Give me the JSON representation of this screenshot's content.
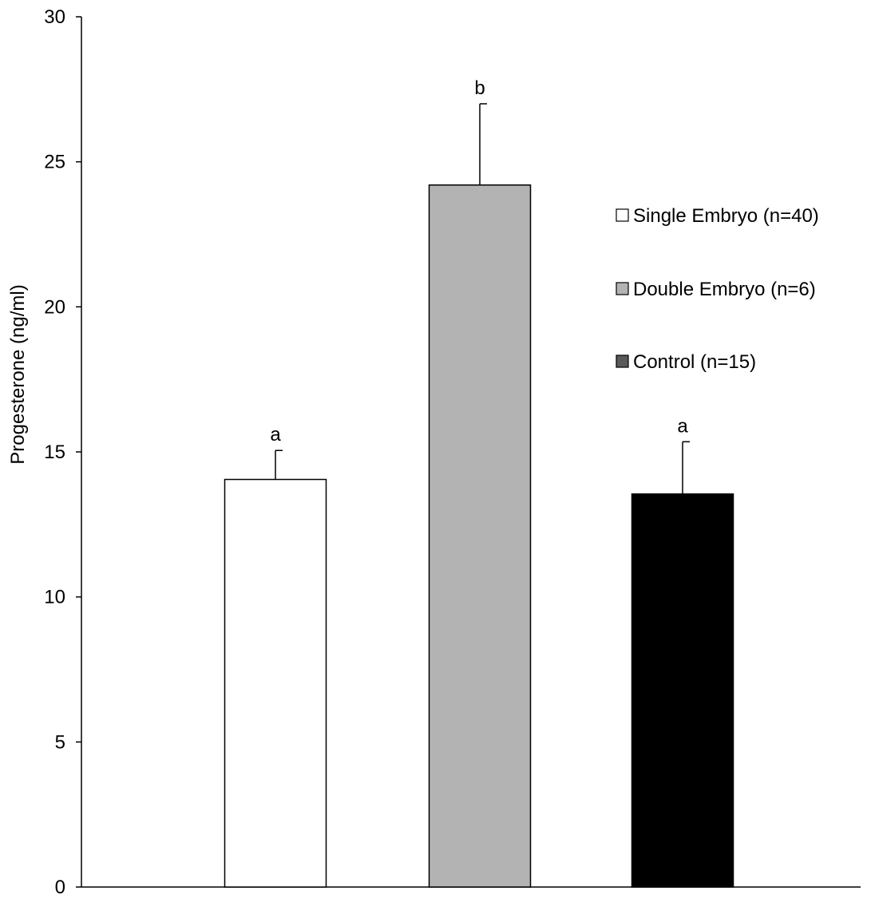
{
  "chart_data": {
    "type": "bar",
    "title": "",
    "xlabel": "",
    "ylabel": "Progesterone (ng/ml)",
    "ylim": [
      0,
      30
    ],
    "yticks": [
      0,
      5,
      10,
      15,
      20,
      25,
      30
    ],
    "grid": false,
    "legend_position": "right",
    "series": [
      {
        "name": "Single Embryo (n=40)",
        "value": 14.05,
        "error": 1.0,
        "significance": "a",
        "color": "#ffffff"
      },
      {
        "name": "Double Embryo (n=6)",
        "value": 24.2,
        "error": 2.8,
        "significance": "b",
        "color": "#b3b3b3"
      },
      {
        "name": "Control (n=15)",
        "value": 13.55,
        "error": 1.8,
        "significance": "a",
        "color": "#000000"
      }
    ],
    "legend_swatch_colors": [
      "#ffffff",
      "#b3b3b3",
      "#595959"
    ]
  }
}
